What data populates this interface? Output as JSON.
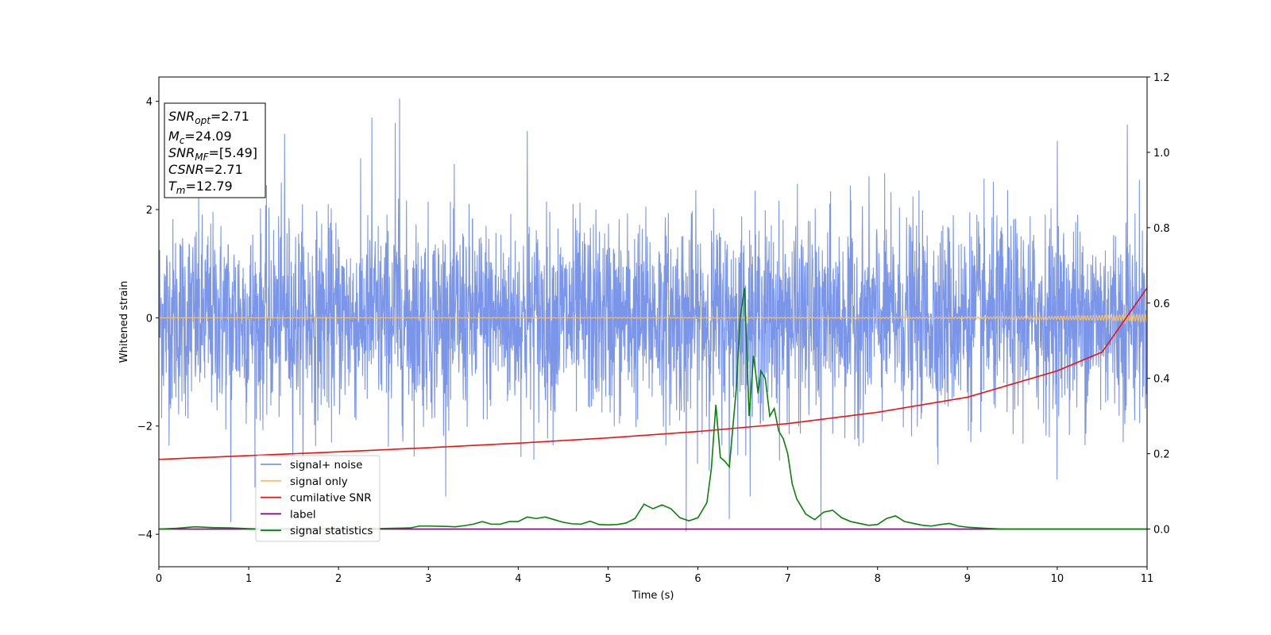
{
  "chart_data": {
    "type": "line",
    "xlabel": "Time (s)",
    "ylabel": "Whitened strain",
    "xlim": [
      0,
      11
    ],
    "ylim": [
      -4.6,
      4.45
    ],
    "y2lim": [
      -0.1,
      1.2
    ],
    "x_ticks": [
      "0",
      "1",
      "2",
      "3",
      "4",
      "5",
      "6",
      "7",
      "8",
      "9",
      "10",
      "11"
    ],
    "y_ticks": [
      "4",
      "2",
      "0",
      "−2",
      "−4"
    ],
    "y_tick_values": [
      4,
      2,
      0,
      -2,
      -4
    ],
    "y2_ticks": [
      "1.2",
      "1.0",
      "0.8",
      "0.6",
      "0.4",
      "0.2",
      "0.0"
    ],
    "y2_tick_values": [
      1.2,
      1.0,
      0.8,
      0.6,
      0.4,
      0.2,
      0.0
    ],
    "colors": {
      "signal_noise": "#7b96e8",
      "signal_only": "#f5c06b",
      "cumulative_snr": "#ee1111",
      "label": "#800080",
      "signal_statistics": "#0a800a"
    },
    "info_box": {
      "snr_opt": {
        "main": "SNR",
        "sub": "opt",
        "value": "=2.71"
      },
      "mc": {
        "main": "M",
        "sub": "c",
        "value": "=24.09"
      },
      "snr_mf": {
        "main": "SNR",
        "sub": "MF",
        "value": "=[5.49]"
      },
      "csnr": {
        "main": "CSNR",
        "value": "=2.71"
      },
      "tm": {
        "main": "T",
        "sub": "m",
        "value": "=12.79"
      }
    },
    "legend": [
      {
        "key": "signal_noise",
        "label": "signal+ noise"
      },
      {
        "key": "signal_only",
        "label": "signal only"
      },
      {
        "key": "cumulative_snr",
        "label": "cumilative SNR"
      },
      {
        "key": "label",
        "label": "label"
      },
      {
        "key": "signal_statistics",
        "label": "signal statistics"
      }
    ],
    "series": [
      {
        "name": "signal+ noise",
        "axis": "left",
        "description": "whitened strain noise, approx. std 0.9, peak +4.05 near t=2.68, min -3.95 near t=5.87",
        "peaks": [
          {
            "x": 0.8,
            "y": -3.78
          },
          {
            "x": 1.4,
            "y": 3.4
          },
          {
            "x": 2.37,
            "y": 3.7
          },
          {
            "x": 2.63,
            "y": 3.6
          },
          {
            "x": 2.68,
            "y": 4.05
          },
          {
            "x": 4.1,
            "y": 3.45
          },
          {
            "x": 5.87,
            "y": -3.95
          },
          {
            "x": 6.35,
            "y": -3.72
          },
          {
            "x": 7.37,
            "y": -3.9
          },
          {
            "x": 10.0,
            "y": 3.27
          },
          {
            "x": 10.78,
            "y": 3.57
          }
        ]
      },
      {
        "name": "signal only",
        "axis": "left",
        "description": "chirp signal, amplitude grows from ~0 to ~0.06 at t=11",
        "x": [
          0,
          2,
          4,
          6,
          8,
          9,
          10,
          10.5,
          11
        ],
        "amplitude": [
          0.003,
          0.004,
          0.006,
          0.008,
          0.012,
          0.018,
          0.03,
          0.045,
          0.065
        ]
      },
      {
        "name": "cumilative SNR",
        "axis": "right",
        "x": [
          0,
          1,
          2,
          3,
          4,
          5,
          6,
          7,
          8,
          9,
          10,
          10.5,
          11
        ],
        "y": [
          0.185,
          0.195,
          0.205,
          0.216,
          0.228,
          0.242,
          0.259,
          0.28,
          0.31,
          0.35,
          0.42,
          0.47,
          0.64
        ]
      },
      {
        "name": "label",
        "axis": "right",
        "x": [
          0,
          11
        ],
        "y": [
          0.0,
          0.0
        ]
      },
      {
        "name": "signal statistics",
        "axis": "right",
        "x": [
          0,
          0.2,
          0.4,
          0.6,
          0.8,
          1.0,
          1.2,
          1.4,
          1.6,
          1.8,
          2.0,
          2.2,
          2.4,
          2.6,
          2.8,
          2.9,
          3.0,
          3.2,
          3.3,
          3.4,
          3.5,
          3.6,
          3.7,
          3.8,
          3.9,
          4.0,
          4.1,
          4.2,
          4.3,
          4.4,
          4.5,
          4.6,
          4.7,
          4.8,
          4.9,
          5.0,
          5.1,
          5.2,
          5.3,
          5.4,
          5.5,
          5.6,
          5.7,
          5.8,
          5.9,
          6.0,
          6.1,
          6.15,
          6.2,
          6.25,
          6.3,
          6.35,
          6.43,
          6.47,
          6.52,
          6.57,
          6.62,
          6.67,
          6.7,
          6.75,
          6.8,
          6.85,
          6.9,
          6.95,
          7.0,
          7.05,
          7.1,
          7.15,
          7.2,
          7.3,
          7.4,
          7.5,
          7.6,
          7.7,
          7.8,
          7.9,
          8.0,
          8.1,
          8.2,
          8.3,
          8.4,
          8.5,
          8.6,
          8.7,
          8.8,
          8.9,
          9.0,
          9.2,
          9.4,
          9.6,
          9.8,
          10.0,
          10.5,
          11.0
        ],
        "y": [
          0.0,
          0.002,
          0.006,
          0.004,
          0.003,
          0.001,
          0.0,
          0.001,
          0.002,
          0.001,
          0.001,
          0.001,
          0.001,
          0.002,
          0.003,
          0.008,
          0.008,
          0.007,
          0.006,
          0.009,
          0.013,
          0.02,
          0.013,
          0.013,
          0.02,
          0.02,
          0.032,
          0.028,
          0.032,
          0.025,
          0.018,
          0.014,
          0.013,
          0.021,
          0.012,
          0.011,
          0.012,
          0.016,
          0.028,
          0.066,
          0.054,
          0.064,
          0.054,
          0.03,
          0.022,
          0.03,
          0.07,
          0.16,
          0.33,
          0.19,
          0.18,
          0.165,
          0.38,
          0.56,
          0.64,
          0.3,
          0.46,
          0.36,
          0.42,
          0.4,
          0.3,
          0.32,
          0.26,
          0.24,
          0.2,
          0.12,
          0.08,
          0.06,
          0.04,
          0.025,
          0.045,
          0.05,
          0.03,
          0.02,
          0.015,
          0.01,
          0.012,
          0.028,
          0.035,
          0.02,
          0.015,
          0.01,
          0.008,
          0.012,
          0.015,
          0.008,
          0.005,
          0.002,
          0.0,
          0.0,
          0.0,
          0.0,
          0.0,
          0.0
        ]
      }
    ]
  }
}
